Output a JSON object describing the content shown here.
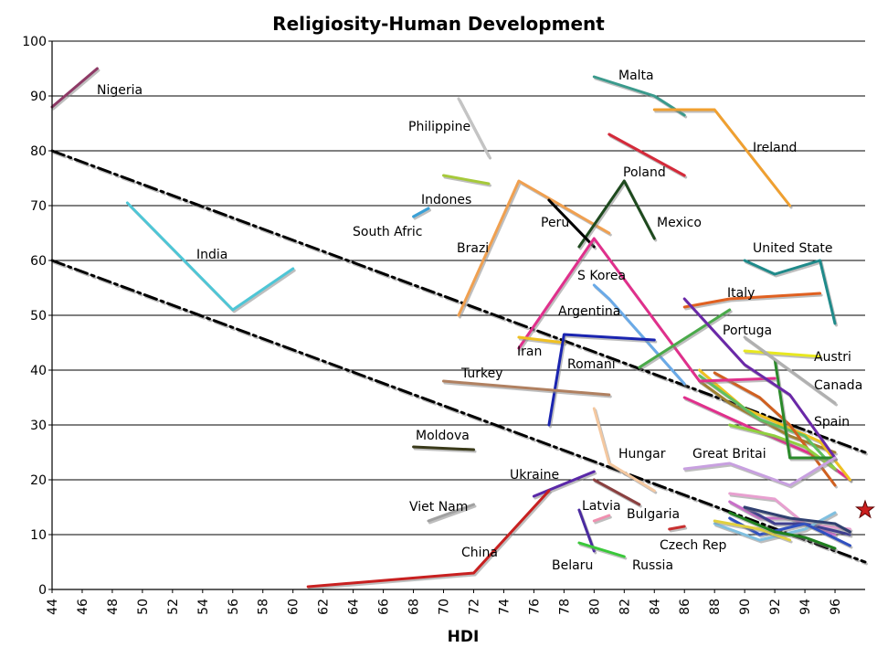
{
  "chart_data": {
    "type": "line",
    "title": "Religiosity-Human Development",
    "xlabel": "HDI",
    "ylabel": "",
    "xlim": [
      44,
      98
    ],
    "ylim": [
      0,
      100
    ],
    "x_ticks": [
      44,
      46,
      48,
      50,
      52,
      54,
      56,
      58,
      60,
      62,
      64,
      66,
      68,
      70,
      72,
      74,
      76,
      78,
      80,
      82,
      84,
      86,
      88,
      90,
      92,
      94,
      96
    ],
    "y_ticks": [
      0,
      10,
      20,
      30,
      40,
      50,
      60,
      70,
      80,
      90,
      100
    ],
    "grid": "horizontal",
    "legend": "none",
    "trend_lines": [
      {
        "points": [
          [
            44,
            80
          ],
          [
            98,
            25
          ]
        ],
        "color": "#000000"
      },
      {
        "points": [
          [
            44,
            60
          ],
          [
            98,
            5
          ]
        ],
        "color": "#000000"
      }
    ],
    "marker": {
      "x": 98,
      "y": 14.5,
      "shape": "star",
      "color": "#cc1f1f"
    },
    "series": [
      {
        "name": "Nigeria",
        "points": [
          [
            44,
            88
          ],
          [
            47,
            95
          ]
        ],
        "color": "#8e3a66"
      },
      {
        "name": "India",
        "points": [
          [
            49,
            70.5
          ],
          [
            56,
            51
          ],
          [
            60,
            58.5
          ]
        ],
        "color": "#4ec6d6"
      },
      {
        "name": "Philippine",
        "points": [
          [
            71,
            89.5
          ],
          [
            73,
            79
          ]
        ],
        "color": "#c4c4c4"
      },
      {
        "name": "Indones",
        "points": [
          [
            70,
            75.5
          ],
          [
            73,
            74
          ]
        ],
        "color": "#a6c93a"
      },
      {
        "name": "South Afric",
        "points": [
          [
            68,
            68
          ],
          [
            69,
            69.5
          ]
        ],
        "color": "#3aa0d6"
      },
      {
        "name": "Brazi",
        "points": [
          [
            71,
            50
          ],
          [
            75,
            74.5
          ],
          [
            81,
            65
          ]
        ],
        "color": "#f0a050"
      },
      {
        "name": "Malta",
        "points": [
          [
            80,
            93.5
          ],
          [
            84,
            90
          ],
          [
            86,
            86.5
          ]
        ],
        "color": "#3a9a8c"
      },
      {
        "name": "Ireland",
        "points": [
          [
            84,
            87.5
          ],
          [
            88,
            87.5
          ],
          [
            93,
            70
          ]
        ],
        "color": "#f0a030"
      },
      {
        "name": "Poland",
        "points": [
          [
            81,
            83
          ],
          [
            86,
            75.5
          ]
        ],
        "color": "#d42a3a"
      },
      {
        "name": "Mexico",
        "points": [
          [
            79,
            62.5
          ],
          [
            82,
            74.5
          ],
          [
            84,
            64
          ]
        ],
        "color": "#1e4a1e"
      },
      {
        "name": "Peru",
        "points": [
          [
            77,
            71
          ],
          [
            80,
            62.5
          ]
        ],
        "color": "#000000"
      },
      {
        "name": "United State",
        "points": [
          [
            90,
            60
          ],
          [
            92,
            57.5
          ],
          [
            95,
            60
          ],
          [
            96,
            48.5
          ]
        ],
        "color": "#1f8a8a"
      },
      {
        "name": "S Korea",
        "points": [
          [
            75,
            44
          ],
          [
            80,
            64
          ],
          [
            87,
            38
          ],
          [
            92,
            38.5
          ]
        ],
        "color": "#e0308c"
      },
      {
        "name": "Argentina",
        "points": [
          [
            80,
            55.5
          ],
          [
            81,
            53
          ],
          [
            86,
            37.5
          ]
        ],
        "color": "#6aaae8"
      },
      {
        "name": "Italy",
        "points": [
          [
            86,
            51.5
          ],
          [
            89,
            53
          ],
          [
            95,
            54
          ]
        ],
        "color": "#e06020"
      },
      {
        "name": "Portuga",
        "points": [
          [
            83,
            40.5
          ],
          [
            89,
            51
          ]
        ],
        "color": "#4aaa4a"
      },
      {
        "name": "Iran",
        "points": [
          [
            75,
            46
          ],
          [
            78,
            45
          ]
        ],
        "color": "#f0c020"
      },
      {
        "name": "Romani",
        "points": [
          [
            77,
            30
          ],
          [
            78,
            46.5
          ],
          [
            84,
            45.5
          ]
        ],
        "color": "#1a24b0"
      },
      {
        "name": "Austri",
        "points": [
          [
            90,
            43.5
          ],
          [
            95,
            42.5
          ]
        ],
        "color": "#e8e820"
      },
      {
        "name": "Canada",
        "points": [
          [
            90,
            46
          ],
          [
            96,
            34
          ]
        ],
        "color": "#b0b0b0"
      },
      {
        "name": "Turkey",
        "points": [
          [
            70,
            38
          ],
          [
            81,
            35.5
          ]
        ],
        "color": "#b08060"
      },
      {
        "name": "Spain",
        "points": [
          [
            86,
            53
          ],
          [
            90,
            41
          ],
          [
            93,
            35.5
          ],
          [
            96,
            24
          ]
        ],
        "color": "#6a28a8"
      },
      {
        "name": "Moldova",
        "points": [
          [
            68,
            26
          ],
          [
            72,
            25.5
          ]
        ],
        "color": "#3a3a1a"
      },
      {
        "name": "Hungar",
        "points": [
          [
            80,
            33
          ],
          [
            81,
            23
          ],
          [
            84,
            18
          ]
        ],
        "color": "#f4c8a0"
      },
      {
        "name": "Great Britai",
        "points": [
          [
            86,
            22
          ],
          [
            89,
            23
          ],
          [
            93,
            19
          ],
          [
            96,
            24
          ]
        ],
        "color": "#c8a0e0"
      },
      {
        "name": "Ukraine",
        "points": [
          [
            76,
            17
          ],
          [
            80,
            21.5
          ]
        ],
        "color": "#5a28a8"
      },
      {
        "name": "Viet Nam",
        "points": [
          [
            69,
            12.5
          ],
          [
            72,
            15.5
          ]
        ],
        "color": "#a0a0a0"
      },
      {
        "name": "Latvia",
        "points": [
          [
            80,
            12.5
          ],
          [
            81,
            13.5
          ]
        ],
        "color": "#f090b0"
      },
      {
        "name": "Bulgaria",
        "points": [
          [
            80,
            20
          ],
          [
            83,
            15.5
          ]
        ],
        "color": "#8a4040"
      },
      {
        "name": "China",
        "points": [
          [
            61,
            0.5
          ],
          [
            72,
            3
          ],
          [
            77,
            18
          ]
        ],
        "color": "#c82020"
      },
      {
        "name": "Belaru",
        "points": [
          [
            79,
            14.5
          ],
          [
            80,
            7
          ]
        ],
        "color": "#4a2aa0"
      },
      {
        "name": "Russia",
        "points": [
          [
            79,
            8.5
          ],
          [
            82,
            6
          ]
        ],
        "color": "#3ac83a"
      },
      {
        "name": "Czech Rep",
        "points": [
          [
            85,
            11
          ],
          [
            86,
            11.5
          ]
        ],
        "color": "#c83030"
      }
    ],
    "unlabeled_series": [
      {
        "points": [
          [
            86,
            35
          ],
          [
            90,
            30
          ],
          [
            95,
            24
          ],
          [
            97,
            20
          ]
        ],
        "color": "#e0308c"
      },
      {
        "name": "",
        "points": [
          [
            87,
            38
          ],
          [
            89,
            34
          ],
          [
            93,
            28
          ],
          [
            96,
            25
          ]
        ],
        "color": "#a08030"
      },
      {
        "points": [
          [
            87,
            40
          ],
          [
            90,
            33
          ],
          [
            95,
            27
          ],
          [
            97,
            20
          ]
        ],
        "color": "#f0c020"
      },
      {
        "points": [
          [
            87,
            39
          ],
          [
            91,
            31
          ],
          [
            94,
            28
          ],
          [
            96,
            22
          ]
        ],
        "color": "#60c060"
      },
      {
        "points": [
          [
            88,
            39.5
          ],
          [
            91,
            35
          ],
          [
            93,
            30
          ],
          [
            96,
            19
          ]
        ],
        "color": "#d06020"
      },
      {
        "points": [
          [
            89,
            30
          ],
          [
            92,
            28
          ],
          [
            94,
            26
          ],
          [
            96,
            22
          ]
        ],
        "color": "#90d040"
      },
      {
        "points": [
          [
            92,
            42
          ],
          [
            93,
            24
          ],
          [
            96,
            24
          ]
        ],
        "color": "#2a8a2a"
      },
      {
        "points": [
          [
            89,
            17.5
          ],
          [
            92,
            16.5
          ],
          [
            94,
            12
          ],
          [
            97,
            11
          ]
        ],
        "color": "#e8a0d0"
      },
      {
        "points": [
          [
            89,
            16
          ],
          [
            91,
            13
          ],
          [
            93,
            13
          ],
          [
            96,
            10
          ]
        ],
        "color": "#c870c8"
      },
      {
        "points": [
          [
            90,
            15
          ],
          [
            92,
            12
          ],
          [
            94,
            12
          ],
          [
            97,
            10
          ]
        ],
        "color": "#404090"
      },
      {
        "points": [
          [
            88,
            12
          ],
          [
            91,
            9
          ],
          [
            94,
            11
          ],
          [
            96,
            14
          ]
        ],
        "color": "#80c0e0"
      },
      {
        "points": [
          [
            89,
            13
          ],
          [
            91,
            10
          ],
          [
            94,
            12
          ],
          [
            97,
            8
          ]
        ],
        "color": "#3050c0"
      },
      {
        "points": [
          [
            88,
            12.5
          ],
          [
            91,
            11
          ],
          [
            93,
            9
          ]
        ],
        "color": "#e0d040"
      },
      {
        "points": [
          [
            89,
            14
          ],
          [
            92,
            10.5
          ],
          [
            94,
            9.5
          ],
          [
            96,
            7.5
          ]
        ],
        "color": "#208020"
      },
      {
        "points": [
          [
            90,
            15
          ],
          [
            93,
            13
          ],
          [
            96,
            12
          ],
          [
            97,
            10.5
          ]
        ],
        "color": "#304070"
      }
    ]
  },
  "labels": {
    "Nigeria": "Nigeria",
    "India": "India",
    "Philippine": "Philippine",
    "Indones": "Indones",
    "South Afric": "South Afric",
    "Brazi": "Brazi",
    "Malta": "Malta",
    "Ireland": "Ireland",
    "Poland": "Poland",
    "Mexico": "Mexico",
    "Peru": "Peru",
    "United State": "United State",
    "S Korea": "S Korea",
    "Argentina": "Argentina",
    "Italy": "Italy",
    "Portuga": "Portuga",
    "Iran": "Iran",
    "Romani": "Romani",
    "Austri": "Austri",
    "Canada": "Canada",
    "Turkey": "Turkey",
    "Spain": "Spain",
    "Moldova": "Moldova",
    "Hungar": "Hungar",
    "Great Britai": "Great Britai",
    "Ukraine": "Ukraine",
    "Viet Nam": "Viet Nam",
    "Latvia": "Latvia",
    "Bulgaria": "Bulgaria",
    "China": "China",
    "Belaru": "Belaru",
    "Russia": "Russia",
    "Czech Rep": "Czech Rep"
  }
}
